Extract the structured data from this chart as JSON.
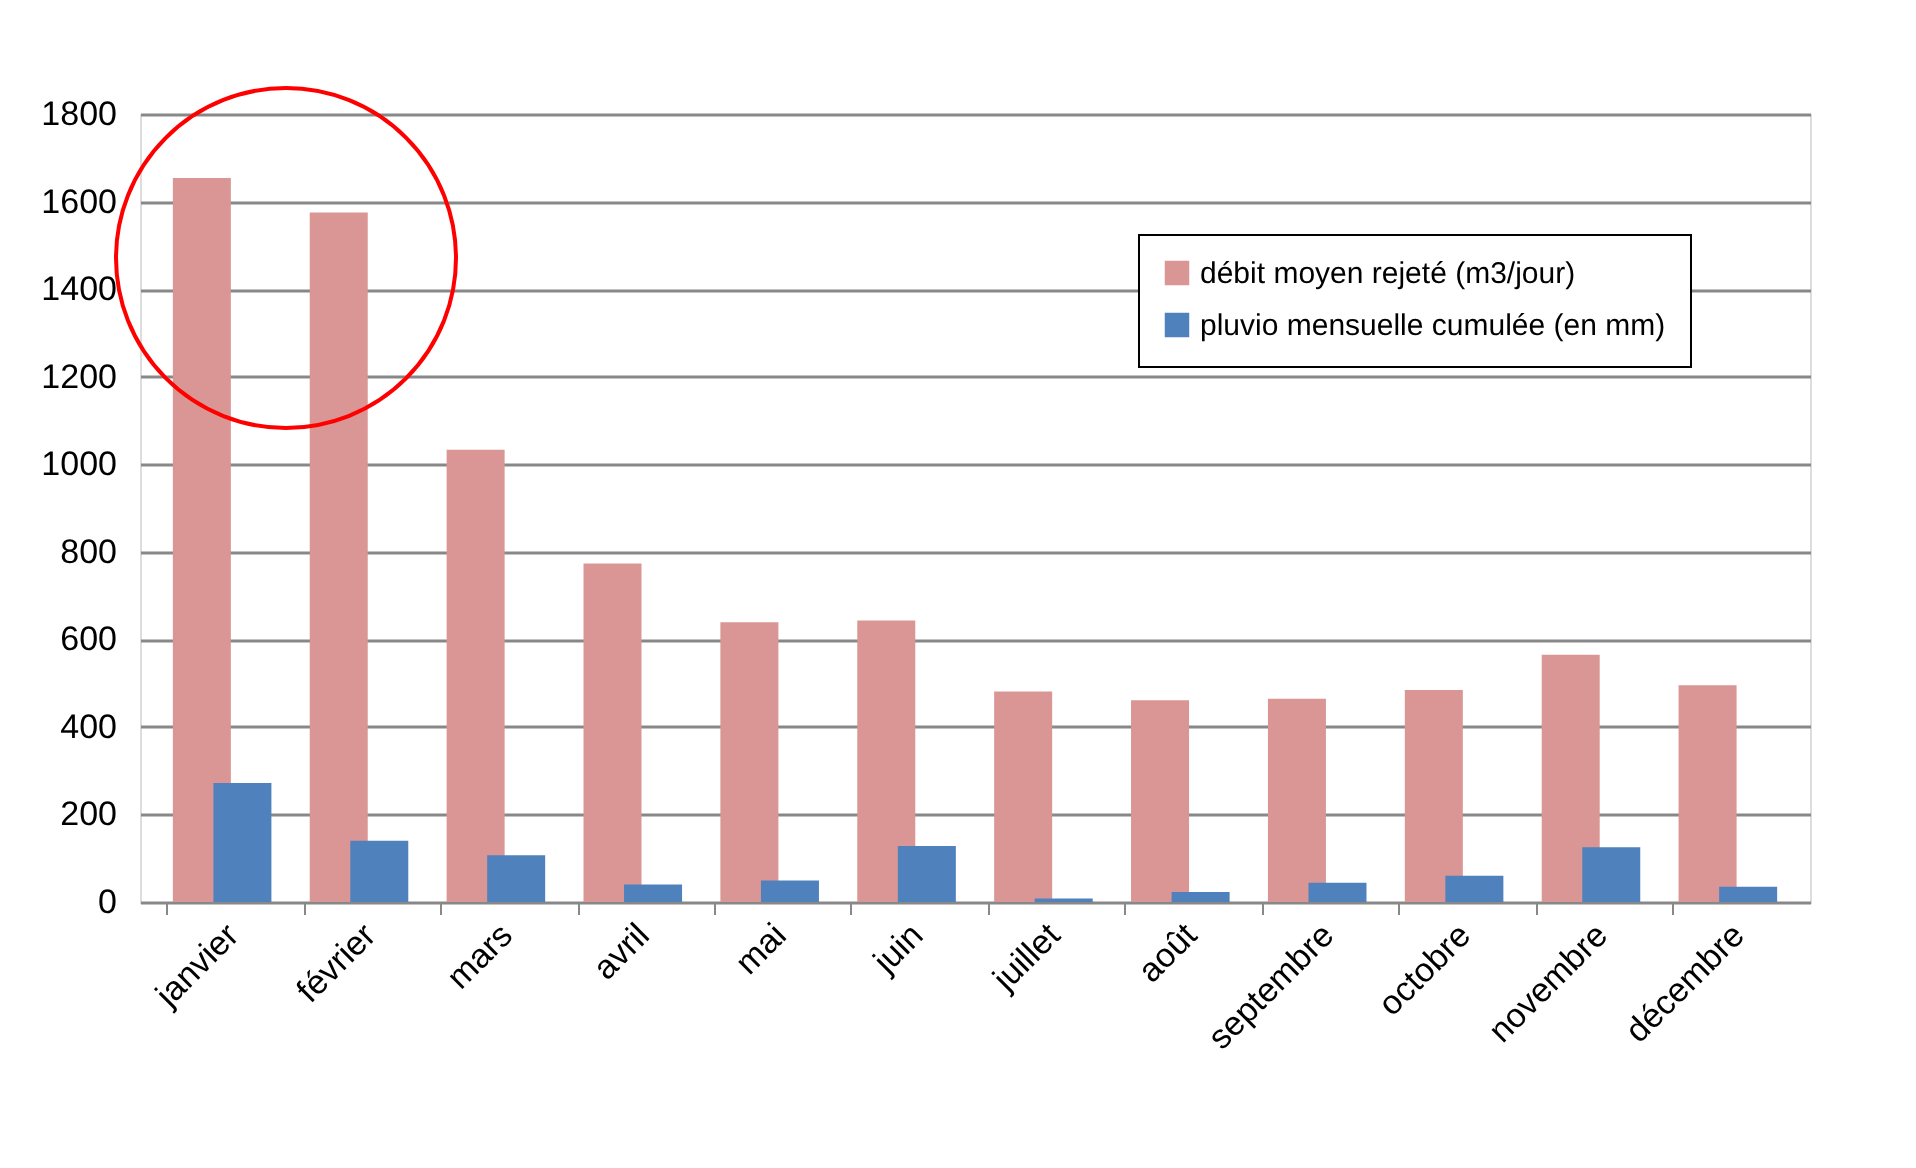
{
  "chart_data": {
    "type": "bar",
    "categories": [
      "janvier",
      "février",
      "mars",
      "avril",
      "mai",
      "juin",
      "juillet",
      "août",
      "septembre",
      "octobre",
      "novembre",
      "décembre"
    ],
    "series": [
      {
        "name": "débit moyen rejeté (m3/jour)",
        "color": "#d99694",
        "values": [
          1654,
          1575,
          1033,
          773,
          639,
          643,
          481,
          461,
          464,
          484,
          565,
          495
        ]
      },
      {
        "name": "pluvio mensuelle cumulée (en mm)",
        "color": "#4f81bd",
        "values": [
          272,
          140,
          107,
          40,
          49,
          128,
          8,
          23,
          44,
          60,
          125,
          35
        ]
      }
    ],
    "ylim": [
      0,
      1800
    ],
    "yticks": [
      0,
      200,
      400,
      600,
      800,
      1000,
      1200,
      1400,
      1600,
      1800
    ],
    "grid": "y",
    "legend": "top right"
  }
}
